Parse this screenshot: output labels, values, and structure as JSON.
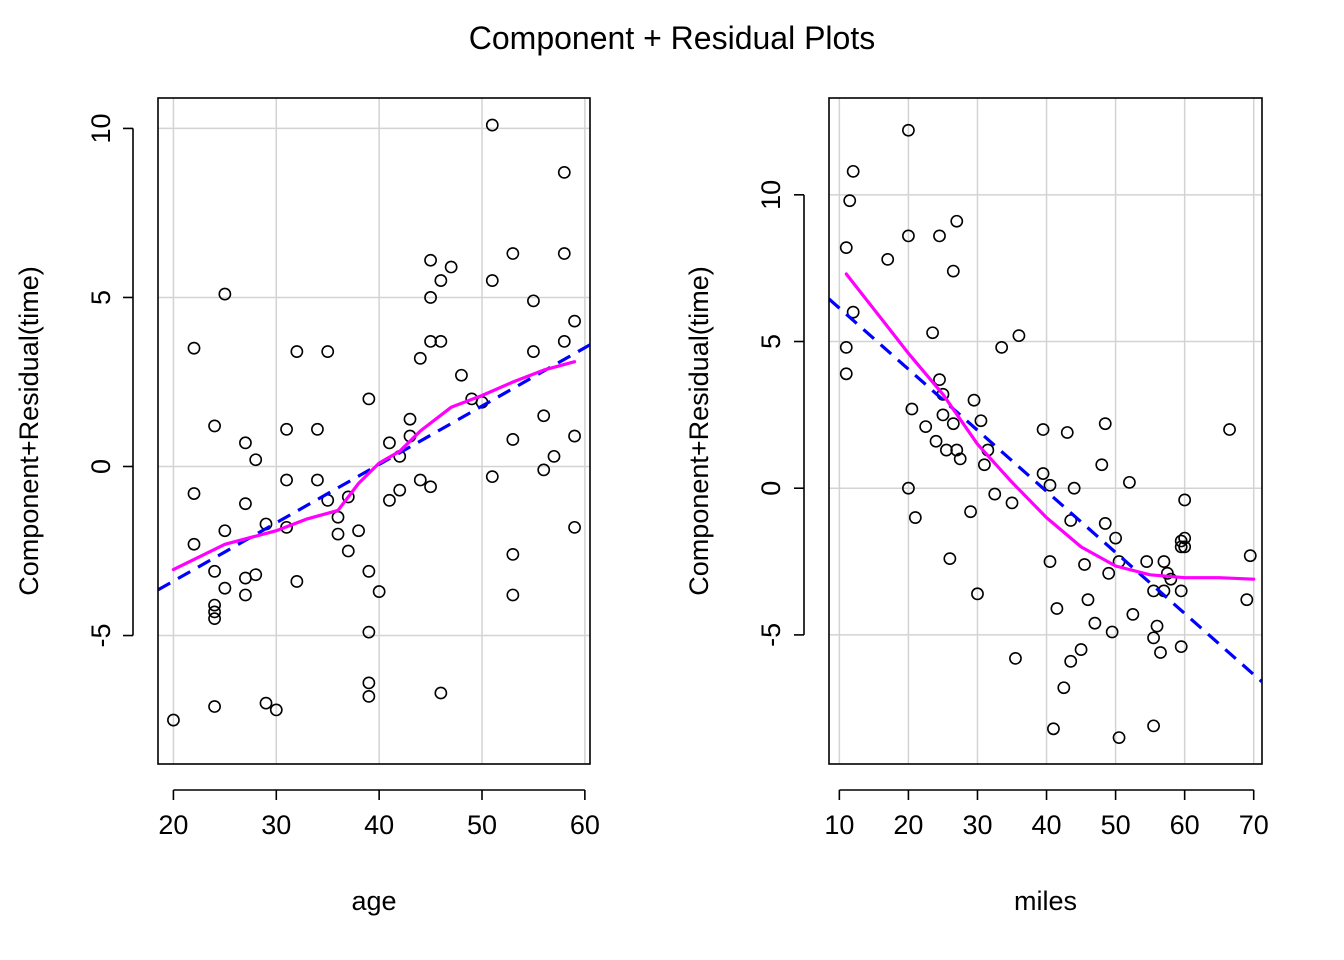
{
  "title": "Component + Residual Plots",
  "colors": {
    "points": "#000000",
    "linear_fit": "#0000ff",
    "smooth_fit": "#ff00ff",
    "grid": "#d3d3d3",
    "frame": "#000000"
  },
  "chart_data": [
    {
      "type": "scatter",
      "xlabel": "age",
      "ylabel": "Component+Residual(time)",
      "xlim": [
        18.5,
        60.5
      ],
      "ylim": [
        -8.8,
        10.9
      ],
      "xticks": [
        20,
        30,
        40,
        50,
        60
      ],
      "yticks": [
        -5,
        0,
        5,
        10
      ],
      "ytick_labels": [
        "-5",
        "0",
        "5",
        "10"
      ],
      "grid": true,
      "points": [
        [
          20,
          -7.5
        ],
        [
          22,
          3.5
        ],
        [
          22,
          -0.8
        ],
        [
          22,
          -2.3
        ],
        [
          24,
          1.2
        ],
        [
          24,
          -3.1
        ],
        [
          24,
          -4.1
        ],
        [
          24,
          -4.3
        ],
        [
          24,
          -4.5
        ],
        [
          24,
          -7.1
        ],
        [
          25,
          5.1
        ],
        [
          25,
          -1.9
        ],
        [
          25,
          -3.6
        ],
        [
          27,
          0.7
        ],
        [
          27,
          -1.1
        ],
        [
          27,
          -3.3
        ],
        [
          27,
          -3.8
        ],
        [
          28,
          0.2
        ],
        [
          28,
          -3.2
        ],
        [
          29,
          -1.7
        ],
        [
          29,
          -7.0
        ],
        [
          30,
          -7.2
        ],
        [
          31,
          1.1
        ],
        [
          31,
          -0.4
        ],
        [
          31,
          -1.8
        ],
        [
          32,
          3.4
        ],
        [
          32,
          -3.4
        ],
        [
          34,
          1.1
        ],
        [
          34,
          -0.4
        ],
        [
          35,
          3.4
        ],
        [
          35,
          -1.0
        ],
        [
          36,
          -1.5
        ],
        [
          36,
          -2.0
        ],
        [
          37,
          -0.9
        ],
        [
          37,
          -2.5
        ],
        [
          38,
          -1.9
        ],
        [
          39,
          2.0
        ],
        [
          39,
          -3.1
        ],
        [
          39,
          -4.9
        ],
        [
          39,
          -6.4
        ],
        [
          39,
          -6.8
        ],
        [
          40,
          -3.7
        ],
        [
          41,
          0.7
        ],
        [
          41,
          -1.0
        ],
        [
          42,
          0.3
        ],
        [
          42,
          -0.7
        ],
        [
          43,
          1.4
        ],
        [
          43,
          0.9
        ],
        [
          44,
          3.2
        ],
        [
          44,
          -0.4
        ],
        [
          45,
          6.1
        ],
        [
          45,
          5.0
        ],
        [
          45,
          3.7
        ],
        [
          45,
          -0.6
        ],
        [
          46,
          5.5
        ],
        [
          46,
          3.7
        ],
        [
          46,
          -6.7
        ],
        [
          47,
          5.9
        ],
        [
          48,
          2.7
        ],
        [
          49,
          2.0
        ],
        [
          50,
          1.9
        ],
        [
          51,
          10.1
        ],
        [
          51,
          5.5
        ],
        [
          51,
          -0.3
        ],
        [
          53,
          6.3
        ],
        [
          53,
          0.8
        ],
        [
          53,
          -2.6
        ],
        [
          53,
          -3.8
        ],
        [
          55,
          4.9
        ],
        [
          55,
          3.4
        ],
        [
          56,
          1.5
        ],
        [
          56,
          -0.1
        ],
        [
          57,
          0.3
        ],
        [
          58,
          8.7
        ],
        [
          58,
          6.3
        ],
        [
          58,
          3.7
        ],
        [
          59,
          4.3
        ],
        [
          59,
          0.9
        ],
        [
          59,
          -1.8
        ]
      ],
      "linear_fit": {
        "x": [
          18.5,
          60.5
        ],
        "y": [
          -3.65,
          3.6
        ]
      },
      "smooth_fit": {
        "x": [
          20,
          25,
          30,
          33,
          36,
          38,
          40,
          42,
          44,
          47,
          50,
          53,
          56,
          59
        ],
        "y": [
          -3.05,
          -2.3,
          -1.9,
          -1.55,
          -1.3,
          -0.5,
          0.1,
          0.45,
          1.05,
          1.75,
          2.1,
          2.5,
          2.85,
          3.1
        ]
      }
    },
    {
      "type": "scatter",
      "xlabel": "miles",
      "ylabel": "Component+Residual(time)",
      "xlim": [
        8.5,
        71.2
      ],
      "ylim": [
        -9.4,
        13.3
      ],
      "xticks": [
        10,
        20,
        30,
        40,
        50,
        60,
        70
      ],
      "yticks": [
        -5,
        0,
        5,
        10
      ],
      "ytick_labels": [
        "-5",
        "0",
        "5",
        "10"
      ],
      "grid": true,
      "points": [
        [
          11,
          8.2
        ],
        [
          11,
          4.8
        ],
        [
          11,
          3.9
        ],
        [
          11.5,
          9.8
        ],
        [
          12,
          10.8
        ],
        [
          12,
          6.0
        ],
        [
          17,
          7.8
        ],
        [
          20,
          12.2
        ],
        [
          20,
          0.0
        ],
        [
          20,
          8.6
        ],
        [
          20.5,
          2.7
        ],
        [
          21,
          -1.0
        ],
        [
          22.5,
          2.1
        ],
        [
          23.5,
          5.3
        ],
        [
          24,
          1.6
        ],
        [
          24.5,
          8.6
        ],
        [
          24.5,
          3.7
        ],
        [
          25,
          3.2
        ],
        [
          25,
          2.5
        ],
        [
          25.5,
          1.3
        ],
        [
          26,
          -2.4
        ],
        [
          26.5,
          7.4
        ],
        [
          26.5,
          2.2
        ],
        [
          27,
          9.1
        ],
        [
          27,
          1.3
        ],
        [
          27.5,
          1.0
        ],
        [
          29,
          -0.8
        ],
        [
          29.5,
          3.0
        ],
        [
          30,
          -3.6
        ],
        [
          30.5,
          2.3
        ],
        [
          31,
          0.8
        ],
        [
          31.5,
          1.3
        ],
        [
          32.5,
          -0.2
        ],
        [
          33.5,
          4.8
        ],
        [
          35,
          -0.5
        ],
        [
          35.5,
          -5.8
        ],
        [
          36,
          5.2
        ],
        [
          39.5,
          2.0
        ],
        [
          39.5,
          0.5
        ],
        [
          40.5,
          0.1
        ],
        [
          40.5,
          -2.5
        ],
        [
          41,
          -8.2
        ],
        [
          41.5,
          -4.1
        ],
        [
          42.5,
          -6.8
        ],
        [
          43,
          1.9
        ],
        [
          43.5,
          -1.1
        ],
        [
          43.5,
          -5.9
        ],
        [
          44,
          0.0
        ],
        [
          45,
          -5.5
        ],
        [
          45.5,
          -2.6
        ],
        [
          46,
          -3.8
        ],
        [
          47,
          -4.6
        ],
        [
          48,
          0.8
        ],
        [
          48.5,
          2.2
        ],
        [
          48.5,
          -1.2
        ],
        [
          49,
          -2.9
        ],
        [
          49.5,
          -4.9
        ],
        [
          50,
          -1.7
        ],
        [
          50.5,
          -8.5
        ],
        [
          50.5,
          -2.5
        ],
        [
          52,
          0.2
        ],
        [
          52.5,
          -4.3
        ],
        [
          54.5,
          -2.5
        ],
        [
          55.5,
          -8.1
        ],
        [
          55.5,
          -3.5
        ],
        [
          55.5,
          -5.1
        ],
        [
          56,
          -4.7
        ],
        [
          56.5,
          -5.6
        ],
        [
          57,
          -2.5
        ],
        [
          57,
          -3.5
        ],
        [
          57.5,
          -2.9
        ],
        [
          58,
          -3.1
        ],
        [
          59.5,
          -3.5
        ],
        [
          59.5,
          -2.0
        ],
        [
          59.5,
          -1.8
        ],
        [
          59.5,
          -5.4
        ],
        [
          60,
          -0.4
        ],
        [
          60,
          -2.0
        ],
        [
          60,
          -1.7
        ],
        [
          66.5,
          2.0
        ],
        [
          69,
          -3.8
        ],
        [
          69.5,
          -2.3
        ]
      ],
      "linear_fit": {
        "x": [
          8.5,
          71.2
        ],
        "y": [
          6.45,
          -6.6
        ]
      },
      "smooth_fit": {
        "x": [
          11,
          15,
          20,
          25,
          30,
          35,
          40,
          45,
          50,
          55,
          60,
          65,
          70
        ],
        "y": [
          7.3,
          6.1,
          4.6,
          3.2,
          1.5,
          0.2,
          -1.0,
          -2.0,
          -2.65,
          -2.95,
          -3.05,
          -3.05,
          -3.1
        ]
      }
    }
  ]
}
